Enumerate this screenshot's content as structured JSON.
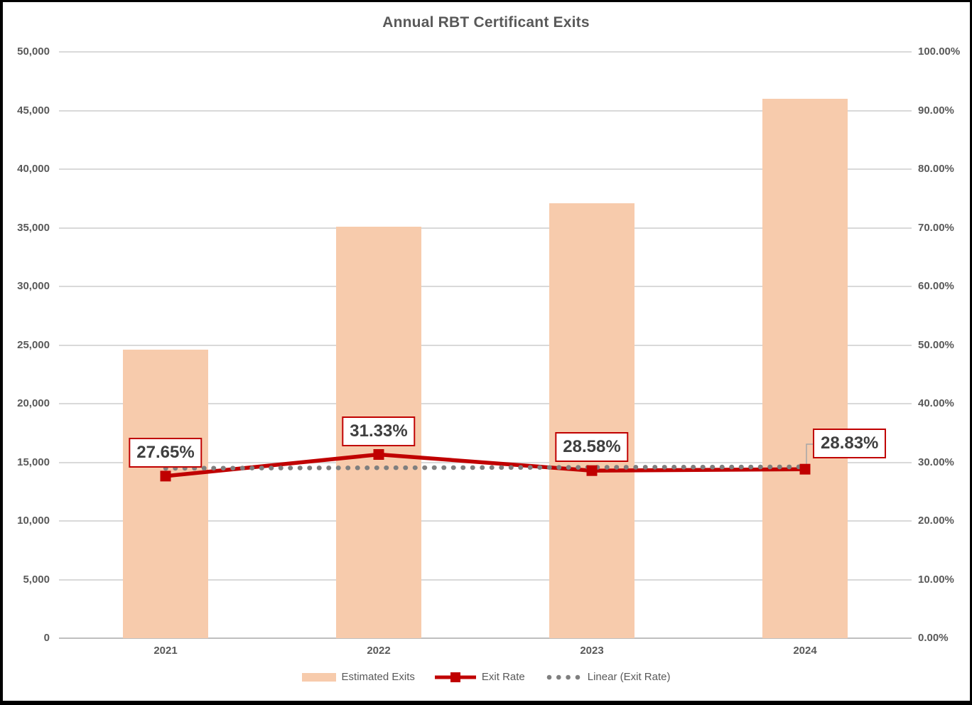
{
  "chart_data": {
    "type": "combo-bar-line",
    "title": "Annual RBT Certificant Exits",
    "categories": [
      "2021",
      "2022",
      "2023",
      "2024"
    ],
    "series": [
      {
        "name": "Estimated Exits",
        "chart": "bar",
        "axis": "left",
        "values": [
          24600,
          35100,
          37100,
          46000
        ]
      },
      {
        "name": "Exit Rate",
        "chart": "line",
        "axis": "right",
        "values": [
          27.65,
          31.33,
          28.58,
          28.83
        ],
        "point_labels": [
          "27.65%",
          "31.33%",
          "28.58%",
          "28.83%"
        ]
      },
      {
        "name": "Linear (Exit Rate)",
        "chart": "trendline",
        "axis": "right",
        "endpoints": [
          28.98,
          29.22
        ]
      }
    ],
    "left_axis": {
      "min": 0,
      "max": 50000,
      "step": 5000,
      "ticks": [
        "0",
        "5,000",
        "10,000",
        "15,000",
        "20,000",
        "25,000",
        "30,000",
        "35,000",
        "40,000",
        "45,000",
        "50,000"
      ]
    },
    "right_axis": {
      "min": 0,
      "max": 100,
      "step": 10,
      "ticks": [
        "0.00%",
        "10.00%",
        "20.00%",
        "30.00%",
        "40.00%",
        "50.00%",
        "60.00%",
        "70.00%",
        "80.00%",
        "90.00%",
        "100.00%"
      ]
    },
    "legend": {
      "position": "bottom",
      "items": [
        {
          "swatch": "bar",
          "label": "Estimated Exits"
        },
        {
          "swatch": "line-marker",
          "label": "Exit Rate"
        },
        {
          "swatch": "dots",
          "label": "Linear (Exit Rate)"
        }
      ]
    },
    "grid": true,
    "colors": {
      "bar": "#F7CBAC",
      "line": "#C00000",
      "trend": "#7F7F7F",
      "gridline": "#D9D9D9",
      "baseline": "#BFBFBF",
      "axis_text": "#595959",
      "title_text": "#595959",
      "label_text": "#3F3F3F",
      "label_border": "#C00000",
      "leader": "#A6A6A6",
      "background": "#FFFFFF",
      "page_border": "#000000"
    }
  }
}
